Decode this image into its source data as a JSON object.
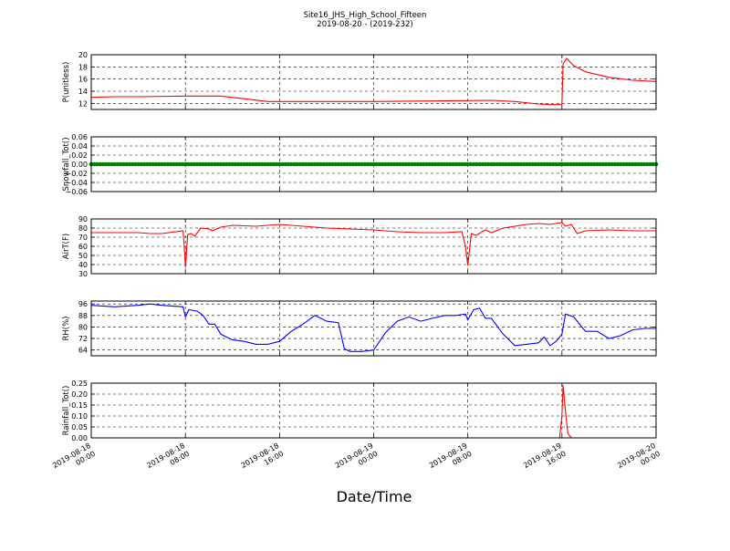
{
  "figure": {
    "title_line1": "Site16_JHS_High_School_Fifteen",
    "title_line2": "2019-08-20 - (2019-232)",
    "xlabel": "Date/Time",
    "x_ticks": [
      {
        "l1": "2019-08-18",
        "l2": "00:00",
        "h": 0
      },
      {
        "l1": "2019-08-18",
        "l2": "08:00",
        "h": 8
      },
      {
        "l1": "2019-08-18",
        "l2": "16:00",
        "h": 16
      },
      {
        "l1": "2019-08-19",
        "l2": "00:00",
        "h": 24
      },
      {
        "l1": "2019-08-19",
        "l2": "08:00",
        "h": 32
      },
      {
        "l1": "2019-08-19",
        "l2": "16:00",
        "h": 40
      },
      {
        "l1": "2019-08-20",
        "l2": "00:00",
        "h": 48
      }
    ]
  },
  "chart_data": [
    {
      "type": "line",
      "ylabel": "P(unitless)",
      "ylim": [
        11,
        20
      ],
      "yticks": [
        12,
        14,
        16,
        18,
        20
      ],
      "ytick_labels": [
        "12",
        "14",
        "16",
        "18",
        "20"
      ],
      "color": "#ff0000",
      "grid": true,
      "x": [
        0,
        2,
        4,
        8,
        11,
        15,
        24,
        34,
        36,
        38,
        39,
        40,
        40.1,
        40.4,
        41,
        42,
        44,
        46,
        48
      ],
      "y": [
        13.0,
        13.1,
        13.1,
        13.2,
        13.2,
        12.3,
        12.3,
        12.5,
        12.3,
        11.9,
        11.8,
        11.8,
        18.5,
        19.4,
        18.2,
        17.2,
        16.3,
        15.8,
        15.6
      ]
    },
    {
      "type": "scatter",
      "ylabel": "Snowfall_Tot()",
      "ylim": [
        -0.06,
        0.06
      ],
      "yticks": [
        -0.06,
        -0.04,
        -0.02,
        0.0,
        0.02,
        0.04,
        0.06
      ],
      "ytick_labels": [
        "−0.06",
        "−0.04",
        "−0.02",
        "0.00",
        "0.02",
        "0.04",
        "0.06"
      ],
      "color": "#008000",
      "grid": true,
      "x_range": [
        0,
        48
      ],
      "x_step": 0.25,
      "value": 0.0
    },
    {
      "type": "line",
      "ylabel": "AirT(F)",
      "ylim": [
        30,
        90
      ],
      "yticks": [
        30,
        40,
        50,
        60,
        70,
        80,
        90
      ],
      "ytick_labels": [
        "30",
        "40",
        "50",
        "60",
        "70",
        "80",
        "90"
      ],
      "color": "#ff0000",
      "grid": true,
      "x": [
        0,
        2,
        4,
        5,
        6,
        7.8,
        7.9,
        8.0,
        8.2,
        8.5,
        8.8,
        9.3,
        10,
        10.3,
        11,
        12,
        14,
        16,
        18,
        20,
        22,
        24,
        26,
        28,
        30,
        31.5,
        31.8,
        32.0,
        32.3,
        32.7,
        33.5,
        34,
        35,
        36,
        37,
        38,
        39,
        40,
        40.3,
        40.8,
        41.3,
        42,
        44,
        46,
        48
      ],
      "y": [
        75,
        75,
        75,
        74,
        74,
        77,
        60,
        37,
        73,
        74,
        71,
        80,
        79,
        77,
        81,
        83,
        82,
        84,
        82,
        80,
        79,
        78,
        76,
        75,
        75,
        76,
        60,
        39,
        74,
        72,
        78,
        75,
        80,
        82,
        84,
        85,
        84,
        86,
        82,
        84,
        74,
        77,
        78,
        77,
        77
      ]
    },
    {
      "type": "line",
      "ylabel": "RH(%)",
      "ylim": [
        60,
        98
      ],
      "yticks": [
        64,
        72,
        80,
        88,
        96
      ],
      "ytick_labels": [
        "64",
        "72",
        "80",
        "88",
        "96"
      ],
      "color": "#0000ff",
      "grid": true,
      "x": [
        0,
        2,
        4,
        5,
        6,
        7.8,
        8.0,
        8.3,
        9,
        9.5,
        10,
        10.5,
        11,
        11.5,
        12,
        13,
        14,
        15,
        16,
        17,
        18,
        19,
        19.5,
        20,
        21,
        21.5,
        22,
        23,
        24,
        25,
        26,
        27,
        28,
        29,
        30,
        31,
        31.8,
        32,
        32.5,
        33,
        33.5,
        34,
        35,
        36,
        37,
        38,
        38.5,
        39,
        39.5,
        40,
        40.3,
        41,
        42,
        43,
        44,
        45,
        46,
        47,
        48
      ],
      "y": [
        95,
        94,
        95,
        96,
        95,
        94,
        87,
        92,
        91,
        88,
        82,
        82,
        75,
        73,
        71,
        70,
        68,
        68,
        70,
        77,
        82,
        88,
        86,
        84,
        83,
        65,
        63,
        63,
        64,
        76,
        84,
        87,
        84,
        86,
        88,
        88,
        89,
        85,
        92,
        93,
        86,
        86,
        75,
        67,
        68,
        69,
        73,
        67,
        70,
        75,
        89,
        87,
        77,
        77,
        72,
        74,
        78,
        79,
        79
      ]
    },
    {
      "type": "line",
      "ylabel": "Rainfall_Tot()",
      "ylim": [
        0,
        0.25
      ],
      "yticks": [
        0.0,
        0.05,
        0.1,
        0.15,
        0.2,
        0.25
      ],
      "ytick_labels": [
        "0.00",
        "0.05",
        "0.10",
        "0.15",
        "0.20",
        "0.25"
      ],
      "color": "#ff0000",
      "grid": true,
      "x": [
        0,
        39.8,
        40.0,
        40.1,
        40.3,
        40.5,
        40.8,
        48
      ],
      "y": [
        0,
        0,
        0.1,
        0.24,
        0.12,
        0.02,
        0,
        0
      ]
    }
  ]
}
